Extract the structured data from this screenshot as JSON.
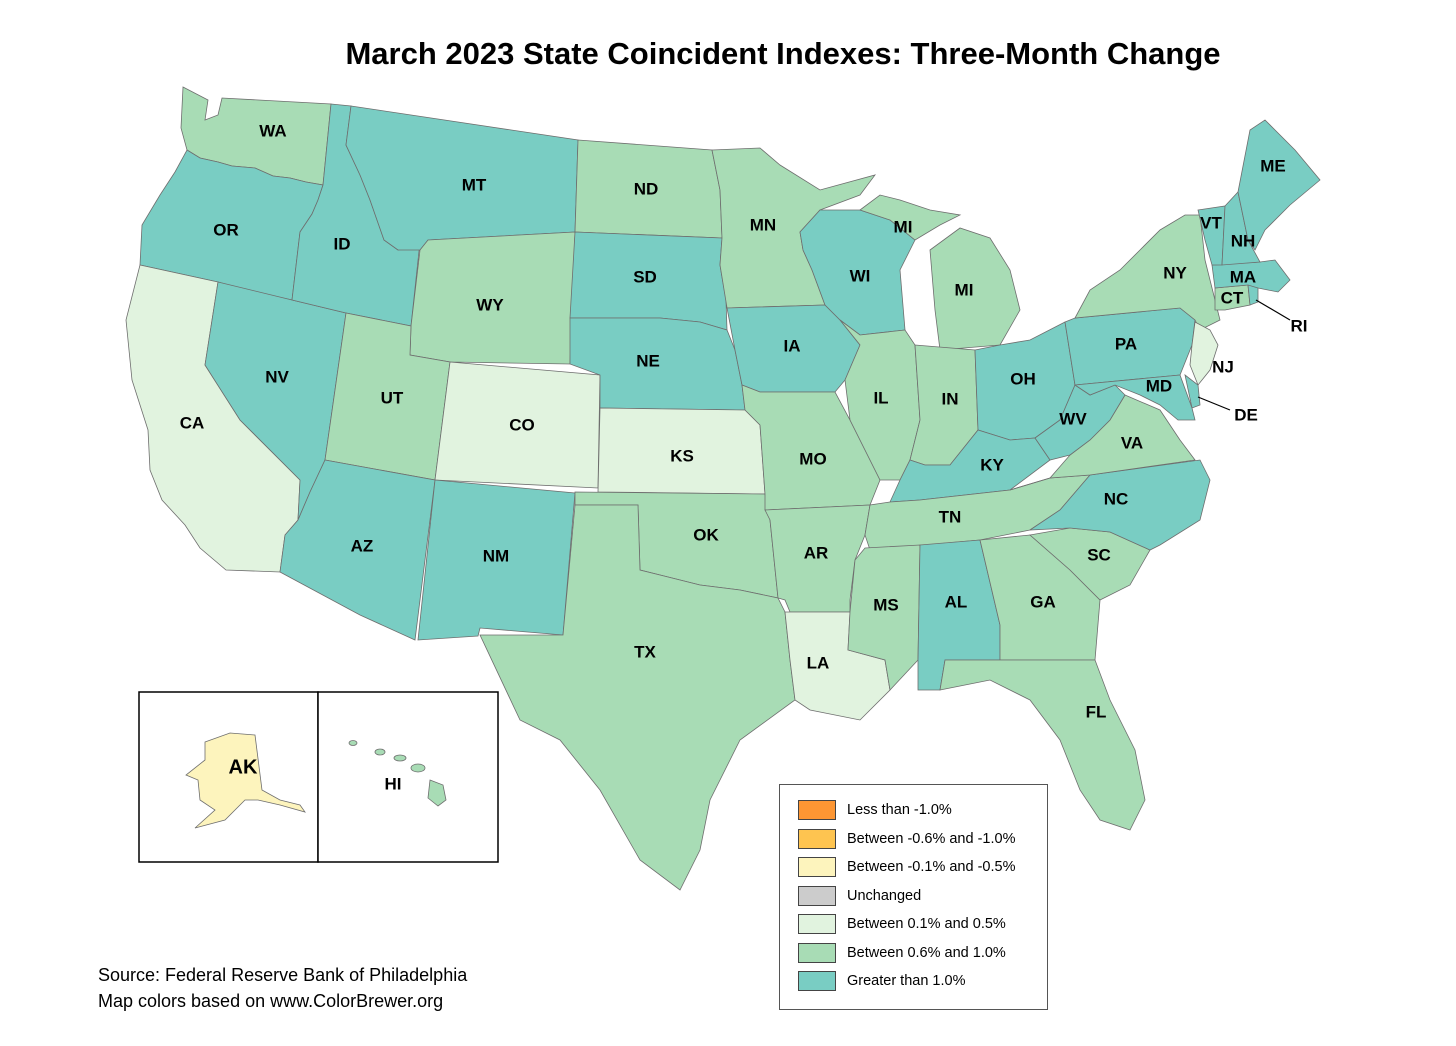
{
  "title": "March 2023 State Coincident Indexes: Three-Month Change",
  "colors": {
    "lt_neg1": "#fd9633",
    "neg06_neg10": "#fec450",
    "neg01_neg05": "#fdf4bd",
    "unchanged": "#cccccc",
    "p01_p05": "#e1f3df",
    "p06_p10": "#a8dcb5",
    "gt1": "#79cdc3",
    "border": "#6e6e6e"
  },
  "legend": [
    {
      "label": "Less than -1.0%",
      "color_key": "lt_neg1"
    },
    {
      "label": "Between -0.6% and -1.0%",
      "color_key": "neg06_neg10"
    },
    {
      "label": "Between -0.1% and -0.5%",
      "color_key": "neg01_neg05"
    },
    {
      "label": "Unchanged",
      "color_key": "unchanged"
    },
    {
      "label": "Between 0.1% and 0.5%",
      "color_key": "p01_p05"
    },
    {
      "label": "Between 0.6% and 1.0%",
      "color_key": "p06_p10"
    },
    {
      "label": "Greater than 1.0%",
      "color_key": "gt1"
    }
  ],
  "states": {
    "WA": "p06_p10",
    "OR": "gt1",
    "CA": "p01_p05",
    "NV": "gt1",
    "ID": "gt1",
    "MT": "gt1",
    "WY": "p06_p10",
    "UT": "p06_p10",
    "AZ": "gt1",
    "CO": "p01_p05",
    "NM": "gt1",
    "ND": "p06_p10",
    "SD": "gt1",
    "NE": "gt1",
    "KS": "p01_p05",
    "OK": "p06_p10",
    "TX": "p06_p10",
    "MN": "p06_p10",
    "IA": "gt1",
    "MO": "p06_p10",
    "AR": "p06_p10",
    "LA": "p01_p05",
    "WI": "gt1",
    "IL": "p06_p10",
    "MI": "p06_p10",
    "IN": "p06_p10",
    "OH": "gt1",
    "KY": "gt1",
    "TN": "p06_p10",
    "MS": "p06_p10",
    "AL": "gt1",
    "GA": "p06_p10",
    "FL": "p06_p10",
    "SC": "p06_p10",
    "NC": "gt1",
    "VA": "p06_p10",
    "WV": "gt1",
    "PA": "gt1",
    "NY": "p06_p10",
    "NJ": "p01_p05",
    "DE": "gt1",
    "MD": "gt1",
    "CT": "p06_p10",
    "RI": "gt1",
    "MA": "gt1",
    "VT": "gt1",
    "NH": "gt1",
    "ME": "gt1",
    "AK": "neg01_neg05",
    "HI": "p06_p10"
  },
  "labels": {
    "WA": "WA",
    "OR": "OR",
    "CA": "CA",
    "NV": "NV",
    "ID": "ID",
    "MT": "MT",
    "WY": "WY",
    "UT": "UT",
    "AZ": "AZ",
    "CO": "CO",
    "NM": "NM",
    "ND": "ND",
    "SD": "SD",
    "NE": "NE",
    "KS": "KS",
    "OK": "OK",
    "TX": "TX",
    "MN": "MN",
    "IA": "IA",
    "MO": "MO",
    "AR": "AR",
    "LA": "LA",
    "WI": "WI",
    "IL": "IL",
    "MI_UP": "MI",
    "MI": "MI",
    "IN": "IN",
    "OH": "OH",
    "KY": "KY",
    "TN": "TN",
    "MS": "MS",
    "AL": "AL",
    "GA": "GA",
    "FL": "FL",
    "SC": "SC",
    "NC": "NC",
    "VA": "VA",
    "WV": "WV",
    "PA": "PA",
    "NY": "NY",
    "NJ": "NJ",
    "DE": "DE",
    "MD": "MD",
    "CT": "CT",
    "RI": "RI",
    "MA": "MA",
    "VT": "VT",
    "NH": "NH",
    "ME": "ME",
    "AK": "AK",
    "HI": "HI"
  },
  "source": {
    "line1": "Source: Federal Reserve Bank of Philadelphia",
    "line2": "Map colors based on www.ColorBrewer.org"
  }
}
